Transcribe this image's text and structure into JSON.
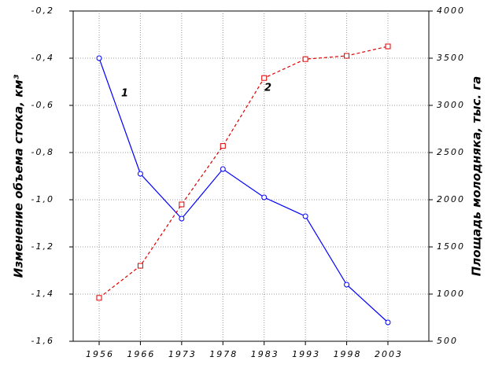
{
  "chart_data": {
    "type": "line",
    "categories": [
      "1956",
      "1966",
      "1973",
      "1978",
      "1983",
      "1993",
      "1998",
      "2003"
    ],
    "series": [
      {
        "name": "1",
        "color": "#0000ff",
        "values": [
          -0.4,
          -0.89,
          -1.08,
          -0.87,
          -0.99,
          -1.07,
          -1.36,
          -1.52
        ]
      },
      {
        "name": "2",
        "color": "#e00000",
        "axis": "y2",
        "values": [
          960,
          1300,
          1950,
          2570,
          3290,
          3490,
          3525,
          3625
        ]
      }
    ],
    "ylim": [
      -1.6,
      -0.2
    ],
    "yticks": [
      {
        "value": -1.6,
        "label": "-1,6"
      },
      {
        "value": -1.4,
        "label": "-1,4"
      },
      {
        "value": -1.2,
        "label": "-1,2"
      },
      {
        "value": -1.0,
        "label": "-1,0"
      },
      {
        "value": -0.8,
        "label": "-0,8"
      },
      {
        "value": -0.6,
        "label": "-0,6"
      },
      {
        "value": -0.4,
        "label": "-0,4"
      },
      {
        "value": -0.2,
        "label": "-0,2"
      }
    ],
    "y2lim": [
      500,
      4000
    ],
    "y2ticks": [
      500,
      1000,
      1500,
      2000,
      2500,
      3000,
      3500,
      4000
    ],
    "ylabel": "Изменение объема стока, км³",
    "y2label": "Площадь молодняка, тыс. га",
    "grid": true
  }
}
